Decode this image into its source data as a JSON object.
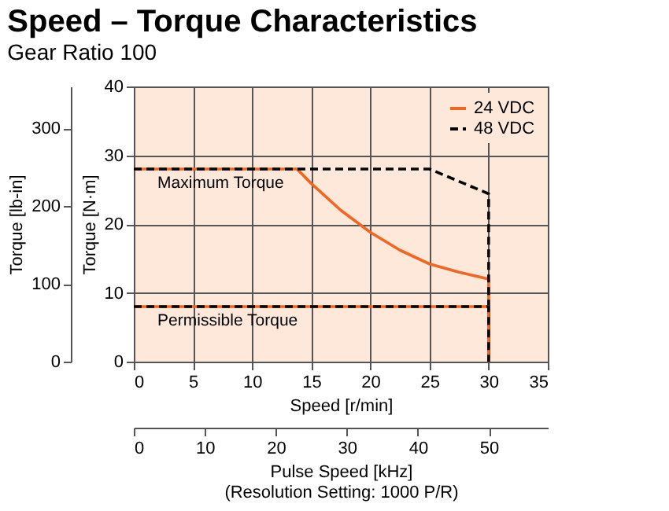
{
  "chart_data": {
    "type": "line",
    "title": "Speed – Torque Characteristics",
    "subtitle": "Gear Ratio 100",
    "xlabel": "Speed [r/min]",
    "ylabel": "Torque [N·m]",
    "y2label": "Torque [lb-in]",
    "x2label": "Pulse Speed [kHz]\n(Resolution Setting: 1000 P/R)",
    "xlim": [
      0,
      35
    ],
    "xticks": [
      0,
      5,
      10,
      15,
      20,
      25,
      30,
      35
    ],
    "ylim": [
      0,
      40
    ],
    "yticks": [
      0,
      10,
      20,
      30,
      40
    ],
    "y2lim": [
      0,
      354
    ],
    "y2ticks": [
      0,
      100,
      200,
      300
    ],
    "x2lim": [
      0,
      58.3
    ],
    "x2ticks": [
      0,
      10,
      20,
      30,
      40,
      50
    ],
    "grid": true,
    "legend": "top right",
    "marker": "none",
    "series": [
      {
        "name": "24 VDC",
        "color": "#f26522",
        "line_style": "solid",
        "x": [
          0,
          13.8,
          15,
          17.5,
          20,
          22.5,
          25,
          27.5,
          30,
          30
        ],
        "values": [
          28,
          28,
          25.9,
          22,
          18.8,
          16.2,
          14.2,
          13,
          12,
          0
        ]
      },
      {
        "name": "48 VDC",
        "color": "#000000",
        "line_style": "dashed",
        "x": [
          0,
          25,
          30,
          30
        ],
        "values": [
          28,
          28,
          24.4,
          0
        ]
      },
      {
        "color": "#f26522",
        "line_style": "solid",
        "x": [
          0,
          30,
          30
        ],
        "values": [
          8,
          8,
          0
        ]
      },
      {
        "color": "#000000",
        "line_style": "dashed",
        "x": [
          0,
          30,
          30
        ],
        "values": [
          8,
          8,
          0
        ]
      }
    ],
    "annotations": [
      {
        "text": "Maximum Torque",
        "x": 2,
        "y": 28
      },
      {
        "text": "Permissible Torque",
        "x": 2,
        "y": 8
      }
    ]
  }
}
